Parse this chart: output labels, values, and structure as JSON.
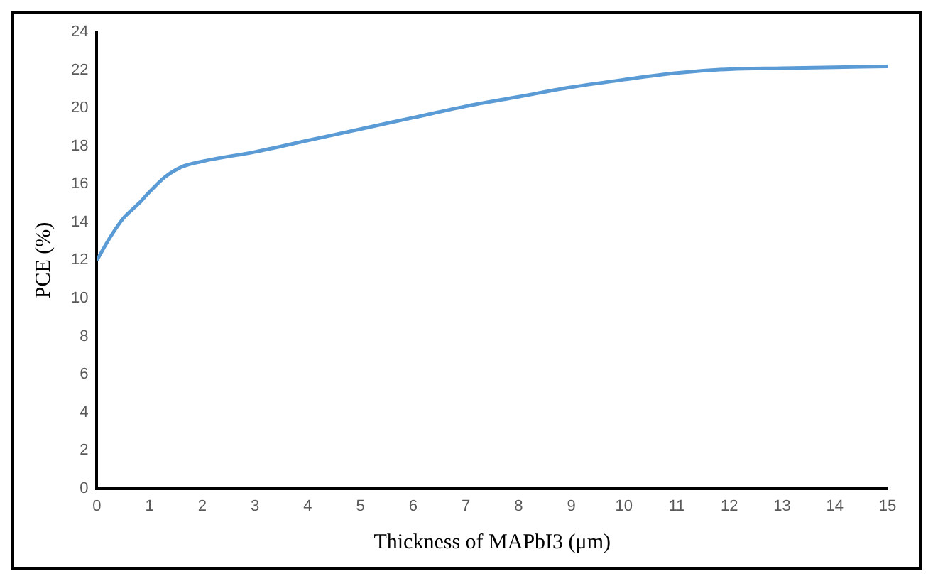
{
  "chart_data": {
    "type": "line",
    "xlabel": "Thickness of MAPbI3 (μm)",
    "ylabel": "PCE (%)",
    "x": [
      0,
      0.25,
      0.5,
      0.8,
      1,
      1.3,
      1.6,
      2,
      3,
      4,
      5,
      6,
      7,
      8,
      9,
      10,
      11,
      12,
      13,
      14,
      15
    ],
    "series": [
      {
        "color": "#5b9bd5",
        "values": [
          12,
          13.2,
          14.2,
          15,
          15.6,
          16.4,
          16.9,
          17.2,
          17.7,
          18.3,
          18.9,
          19.5,
          20.1,
          20.6,
          21.1,
          21.5,
          21.85,
          22.05,
          22.1,
          22.15,
          22.2
        ]
      }
    ],
    "xlim": [
      0,
      15
    ],
    "xticks": [
      0,
      1,
      2,
      3,
      4,
      5,
      6,
      7,
      8,
      9,
      10,
      11,
      12,
      13,
      14,
      15
    ],
    "ylim": [
      0,
      24
    ],
    "yticks": [
      0,
      2,
      4,
      6,
      8,
      10,
      12,
      14,
      16,
      18,
      20,
      22,
      24
    ],
    "grid": false,
    "legend": false,
    "marker": "none",
    "line_style": "solid"
  }
}
